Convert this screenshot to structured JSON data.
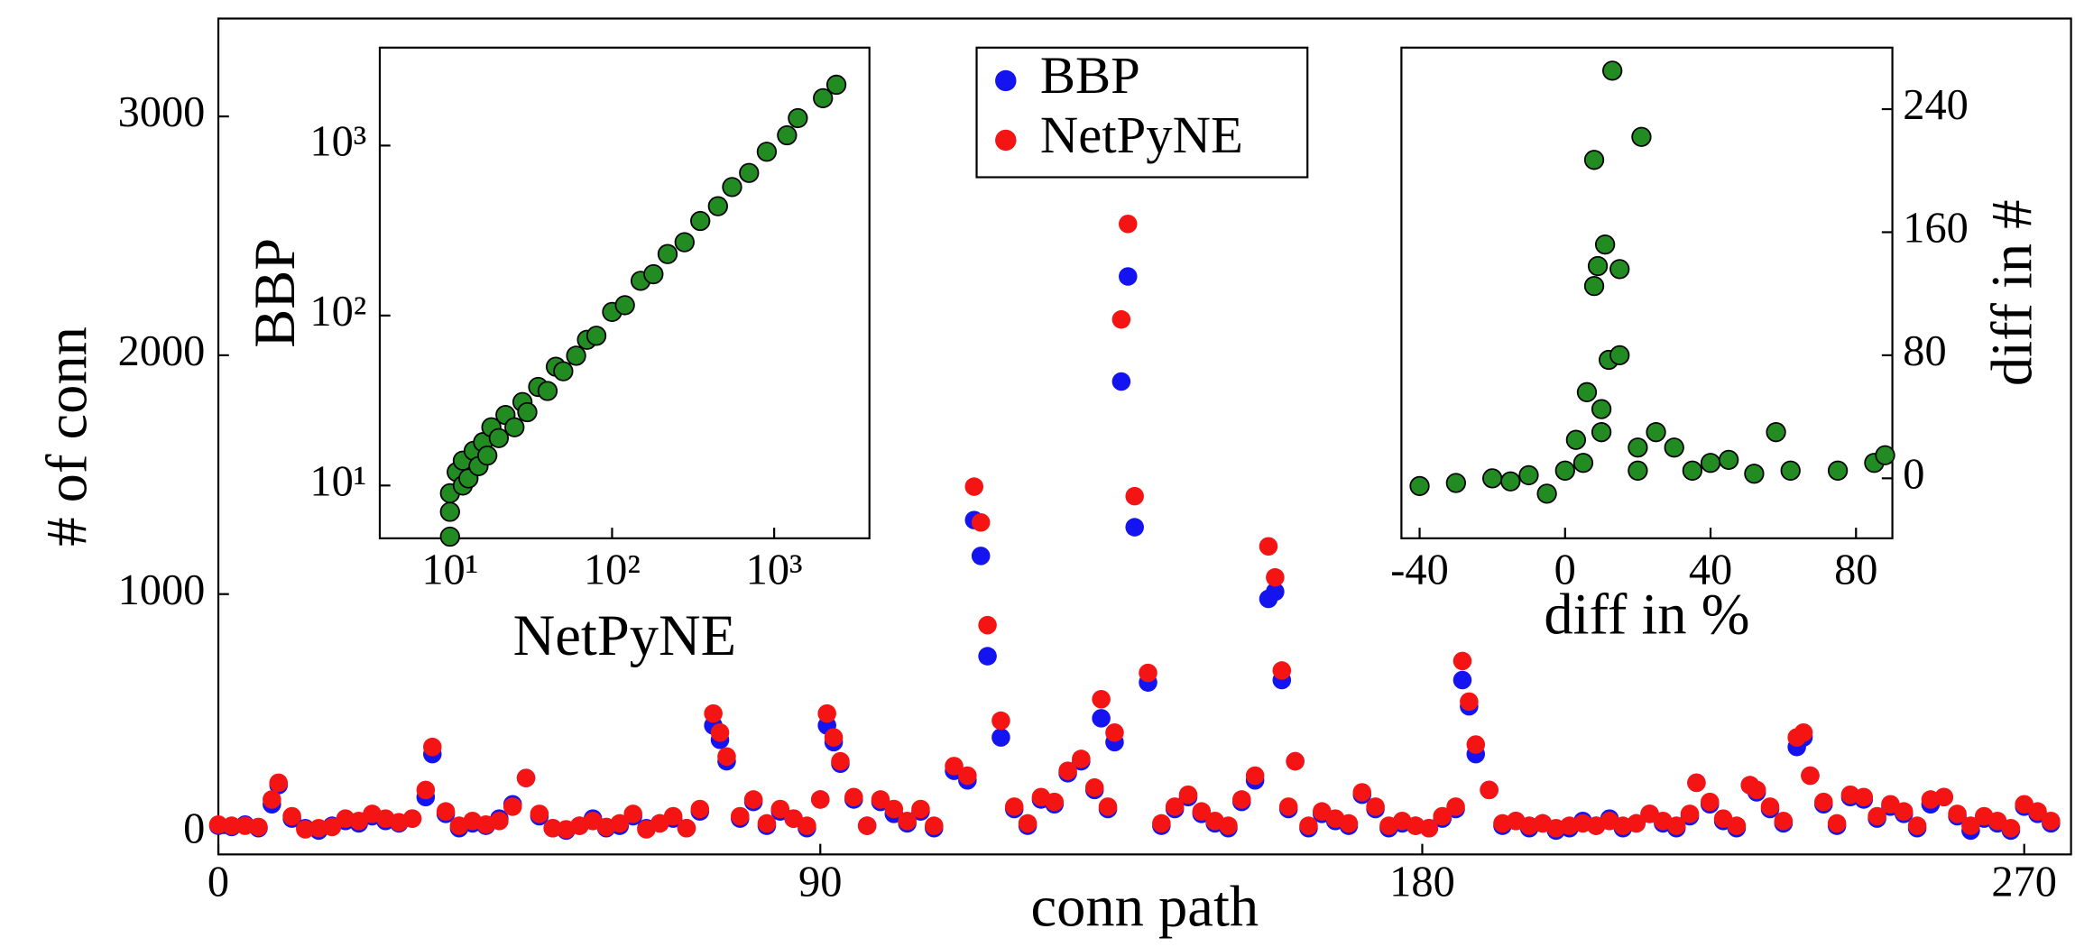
{
  "chart_data": [
    {
      "type": "scatter",
      "xlabel": "conn path",
      "ylabel": "# of conn",
      "x": [
        0,
        2,
        4,
        6,
        8,
        9,
        11,
        13,
        15,
        17,
        19,
        21,
        23,
        25,
        27,
        29,
        31,
        32,
        34,
        36,
        38,
        40,
        42,
        44,
        46,
        48,
        50,
        52,
        54,
        56,
        58,
        60,
        62,
        64,
        66,
        68,
        70,
        72,
        74,
        75,
        76,
        78,
        80,
        82,
        84,
        86,
        88,
        90,
        91,
        92,
        93,
        95,
        97,
        99,
        101,
        103,
        105,
        107,
        110,
        112,
        113,
        114,
        115,
        117,
        119,
        121,
        123,
        125,
        127,
        129,
        131,
        132,
        133,
        134,
        135,
        136,
        137,
        139,
        141,
        143,
        145,
        147,
        149,
        151,
        153,
        155,
        157,
        158,
        159,
        160,
        161,
        163,
        165,
        167,
        169,
        171,
        173,
        175,
        177,
        179,
        181,
        183,
        185,
        186,
        187,
        188,
        190,
        192,
        194,
        196,
        198,
        200,
        202,
        204,
        206,
        208,
        210,
        212,
        214,
        216,
        218,
        220,
        221,
        223,
        225,
        227,
        229,
        230,
        232,
        234,
        236,
        237,
        238,
        240,
        242,
        244,
        246,
        248,
        250,
        252,
        254,
        256,
        258,
        260,
        262,
        264,
        266,
        268,
        270,
        272,
        274
      ],
      "series": [
        {
          "name": "BBP",
          "color": "#1414f0",
          "values": [
            30,
            25,
            35,
            20,
            120,
            200,
            60,
            20,
            10,
            30,
            50,
            40,
            70,
            50,
            40,
            60,
            150,
            330,
            80,
            20,
            40,
            30,
            60,
            120,
            230,
            70,
            20,
            10,
            30,
            60,
            20,
            30,
            70,
            20,
            40,
            60,
            20,
            90,
            450,
            390,
            300,
            60,
            130,
            30,
            90,
            60,
            20,
            140,
            450,
            380,
            290,
            140,
            30,
            130,
            80,
            40,
            90,
            20,
            260,
            220,
            1310,
            1160,
            740,
            400,
            100,
            30,
            140,
            120,
            250,
            300,
            180,
            480,
            100,
            380,
            1890,
            2330,
            1280,
            630,
            30,
            100,
            150,
            80,
            40,
            20,
            130,
            220,
            980,
            1010,
            640,
            100,
            300,
            20,
            80,
            50,
            30,
            160,
            100,
            20,
            40,
            30,
            20,
            60,
            100,
            640,
            530,
            330,
            180,
            30,
            50,
            20,
            40,
            10,
            20,
            50,
            30,
            60,
            20,
            40,
            80,
            40,
            20,
            70,
            210,
            120,
            50,
            20,
            200,
            170,
            100,
            40,
            360,
            400,
            240,
            120,
            30,
            150,
            140,
            60,
            110,
            80,
            20,
            120,
            150,
            70,
            10,
            60,
            40,
            10,
            110,
            80,
            40
          ]
        },
        {
          "name": "NetPyNE",
          "color": "#f51414",
          "values": [
            35,
            30,
            30,
            25,
            140,
            210,
            70,
            15,
            20,
            25,
            60,
            50,
            80,
            60,
            45,
            60,
            180,
            360,
            90,
            30,
            50,
            35,
            50,
            110,
            230,
            80,
            20,
            15,
            30,
            50,
            25,
            40,
            80,
            15,
            40,
            70,
            20,
            100,
            500,
            420,
            320,
            70,
            140,
            40,
            100,
            60,
            30,
            140,
            500,
            400,
            300,
            150,
            30,
            140,
            100,
            50,
            100,
            30,
            280,
            240,
            1450,
            1300,
            870,
            470,
            110,
            40,
            150,
            130,
            260,
            310,
            190,
            560,
            110,
            420,
            2150,
            2550,
            1410,
            670,
            40,
            110,
            160,
            90,
            50,
            30,
            140,
            240,
            1200,
            1070,
            680,
            110,
            300,
            30,
            90,
            60,
            40,
            170,
            110,
            30,
            50,
            30,
            20,
            70,
            110,
            720,
            550,
            370,
            180,
            40,
            50,
            30,
            40,
            20,
            30,
            40,
            30,
            50,
            30,
            40,
            80,
            50,
            30,
            80,
            210,
            130,
            60,
            30,
            200,
            180,
            110,
            50,
            400,
            420,
            240,
            130,
            40,
            160,
            150,
            70,
            120,
            90,
            30,
            140,
            150,
            80,
            30,
            70,
            50,
            20,
            120,
            90,
            50
          ]
        }
      ],
      "xlim": [
        0,
        277
      ],
      "ylim": [
        -90,
        3410
      ],
      "xticks": [
        0,
        90,
        180,
        270
      ],
      "yticks": [
        0,
        1000,
        2000,
        3000
      ],
      "legend": "upper center"
    },
    {
      "type": "scatter",
      "xlabel": "NetPyNE",
      "ylabel": "BBP",
      "log": true,
      "color": "#228b22",
      "x": [
        10,
        10,
        10,
        11,
        12,
        12,
        13,
        14,
        15,
        16,
        17,
        18,
        20,
        22,
        25,
        28,
        30,
        35,
        40,
        45,
        50,
        60,
        70,
        80,
        100,
        120,
        150,
        180,
        220,
        280,
        350,
        450,
        550,
        700,
        900,
        1200,
        1400,
        2000,
        2420
      ],
      "values": [
        5,
        7,
        9,
        12,
        10,
        14,
        11,
        16,
        13,
        18,
        15,
        22,
        19,
        26,
        22,
        31,
        27,
        38,
        36,
        50,
        47,
        58,
        72,
        76,
        105,
        115,
        160,
        175,
        230,
        270,
        360,
        440,
        570,
        690,
        920,
        1150,
        1450,
        1900,
        2280
      ],
      "xlim": [
        3.69,
        3870
      ],
      "ylim": [
        4.89,
        3770
      ],
      "xticks": [
        {
          "value": 10,
          "label": "10¹"
        },
        {
          "value": 100,
          "label": "10²"
        },
        {
          "value": 1000,
          "label": "10³"
        }
      ],
      "yticks": [
        {
          "value": 10,
          "label": "10¹"
        },
        {
          "value": 100,
          "label": "10²"
        },
        {
          "value": 1000,
          "label": "10³"
        }
      ]
    },
    {
      "type": "scatter",
      "xlabel": "diff in %",
      "ylabel": "diff in #",
      "yaxis_side": "right",
      "color": "#228b22",
      "x": [
        13,
        21,
        8,
        11,
        9,
        15,
        8,
        12,
        15,
        6,
        10,
        -40,
        -30,
        -20,
        -10,
        -5,
        0,
        5,
        20,
        25,
        30,
        40,
        52,
        58,
        62,
        75,
        85,
        88,
        20,
        10,
        3,
        -15,
        35,
        45
      ],
      "values": [
        265,
        222,
        207,
        152,
        138,
        136,
        125,
        77,
        80,
        56,
        45,
        -5,
        -3,
        0,
        2,
        -10,
        5,
        10,
        20,
        30,
        20,
        10,
        3,
        30,
        5,
        5,
        10,
        15,
        5,
        30,
        25,
        -2,
        5,
        12
      ],
      "xlim": [
        -45,
        90
      ],
      "ylim": [
        -39,
        280
      ],
      "xticks": [
        -40,
        0,
        40,
        80
      ],
      "yticks": [
        0,
        80,
        160,
        240
      ]
    }
  ]
}
